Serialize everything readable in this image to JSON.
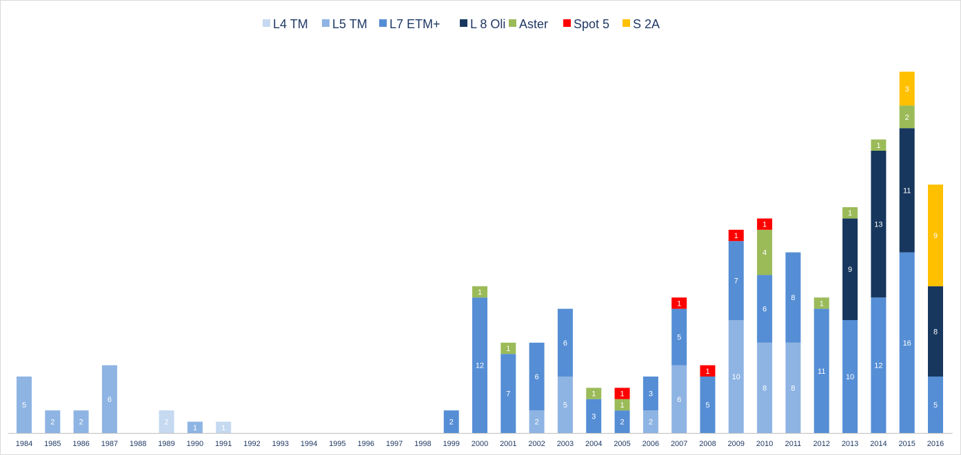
{
  "chart_data": {
    "type": "bar",
    "stacked": true,
    "categories": [
      "1984",
      "1985",
      "1986",
      "1987",
      "1988",
      "1989",
      "1990",
      "1991",
      "1992",
      "1993",
      "1994",
      "1995",
      "1996",
      "1997",
      "1998",
      "1999",
      "2000",
      "2001",
      "2002",
      "2003",
      "2004",
      "2005",
      "2006",
      "2007",
      "2008",
      "2009",
      "2010",
      "2011",
      "2012",
      "2013",
      "2014",
      "2015",
      "2016"
    ],
    "series": [
      {
        "name": "L4 TM",
        "color": "#c5d9f1",
        "values": [
          0,
          0,
          0,
          0,
          0,
          2,
          0,
          1,
          0,
          0,
          0,
          0,
          0,
          0,
          0,
          0,
          0,
          0,
          0,
          0,
          0,
          0,
          0,
          0,
          0,
          0,
          0,
          0,
          0,
          0,
          0,
          0,
          0
        ]
      },
      {
        "name": "L5 TM",
        "color": "#8eb4e3",
        "values": [
          5,
          2,
          2,
          6,
          0,
          0,
          1,
          0,
          0,
          0,
          0,
          0,
          0,
          0,
          0,
          0,
          0,
          0,
          2,
          5,
          0,
          0,
          2,
          6,
          0,
          10,
          8,
          8,
          0,
          0,
          0,
          0,
          0
        ]
      },
      {
        "name": "L7 ETM+",
        "color": "#558ed5",
        "values": [
          0,
          0,
          0,
          0,
          0,
          0,
          0,
          0,
          0,
          0,
          0,
          0,
          0,
          0,
          0,
          2,
          12,
          7,
          6,
          6,
          3,
          2,
          3,
          5,
          5,
          7,
          6,
          8,
          11,
          10,
          12,
          16,
          5
        ]
      },
      {
        "name": "L 8 Oli",
        "color": "#17375e",
        "values": [
          0,
          0,
          0,
          0,
          0,
          0,
          0,
          0,
          0,
          0,
          0,
          0,
          0,
          0,
          0,
          0,
          0,
          0,
          0,
          0,
          0,
          0,
          0,
          0,
          0,
          0,
          0,
          0,
          0,
          9,
          13,
          11,
          8
        ]
      },
      {
        "name": "Aster",
        "color": "#9bbb59",
        "values": [
          0,
          0,
          0,
          0,
          0,
          0,
          0,
          0,
          0,
          0,
          0,
          0,
          0,
          0,
          0,
          0,
          1,
          1,
          0,
          0,
          1,
          1,
          0,
          0,
          0,
          0,
          4,
          0,
          1,
          1,
          1,
          2,
          0
        ]
      },
      {
        "name": "Spot 5",
        "color": "#ff0000",
        "values": [
          0,
          0,
          0,
          0,
          0,
          0,
          0,
          0,
          0,
          0,
          0,
          0,
          0,
          0,
          0,
          0,
          0,
          0,
          0,
          0,
          0,
          1,
          0,
          1,
          1,
          1,
          1,
          0,
          0,
          0,
          0,
          0,
          0
        ]
      },
      {
        "name": "S 2A",
        "color": "#ffc000",
        "values": [
          0,
          0,
          0,
          0,
          0,
          0,
          0,
          0,
          0,
          0,
          0,
          0,
          0,
          0,
          0,
          0,
          0,
          0,
          0,
          0,
          0,
          0,
          0,
          0,
          0,
          0,
          0,
          0,
          0,
          0,
          0,
          3,
          9
        ]
      }
    ],
    "title": "",
    "xlabel": "",
    "ylabel": "",
    "ylim": [
      0,
      32
    ],
    "grid": false,
    "legend": "top-center",
    "data_labels": true
  }
}
